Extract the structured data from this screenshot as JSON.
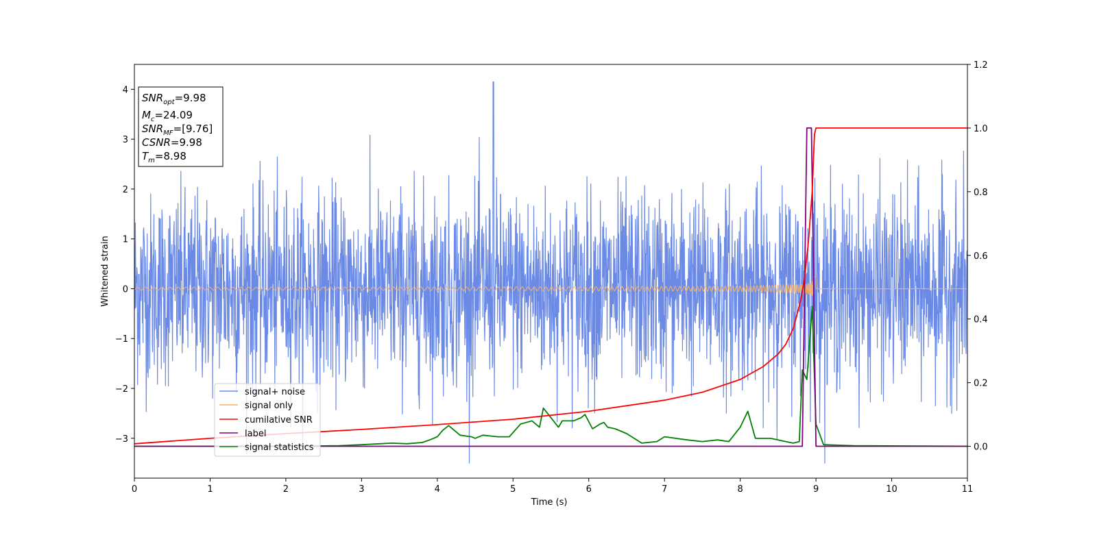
{
  "chart_data": {
    "type": "line",
    "xlabel": "Time (s)",
    "ylabel": "Whitened strain",
    "xlim": [
      0,
      11
    ],
    "ylim_left": [
      -3.8,
      4.5
    ],
    "ylim_right": [
      -0.1,
      1.2
    ],
    "x_ticks": [
      "0",
      "1",
      "2",
      "3",
      "4",
      "5",
      "6",
      "7",
      "8",
      "9",
      "10",
      "11"
    ],
    "y_ticks_left": [
      "−3",
      "−2",
      "−1",
      "0",
      "1",
      "2",
      "3",
      "4"
    ],
    "y_ticks_left_values": [
      -3,
      -2,
      -1,
      0,
      1,
      2,
      3,
      4
    ],
    "y_ticks_right": [
      "0.0",
      "0.2",
      "0.4",
      "0.6",
      "0.8",
      "1.0",
      "1.2"
    ],
    "y_ticks_right_values": [
      0,
      0.2,
      0.4,
      0.6,
      0.8,
      1.0,
      1.2
    ],
    "info_box": {
      "snr_opt": {
        "base": "SNR",
        "sub": "opt",
        "rest": "=9.98"
      },
      "mc": {
        "base": "M",
        "sub": "c",
        "rest": "=24.09"
      },
      "snr_mf": {
        "base": "SNR",
        "sub": "MF",
        "rest": "=[9.76]"
      },
      "csnr": {
        "base": "CSNR",
        "sub": "",
        "rest": "=9.98"
      },
      "tm": {
        "base": "T",
        "sub": "m",
        "rest": "=8.98"
      }
    },
    "legend_position": "lower-left",
    "series": [
      {
        "name": "signal+ noise",
        "axis": "left",
        "color": "#6b8ae6",
        "description": "whitened noise with std ~1, amplitude up to ~4.2"
      },
      {
        "name": "signal only",
        "axis": "left",
        "color": "#f4b266",
        "description": "chirp waveform, amplitude growing to ~0.5 near t=8.95, zero after 9.0"
      },
      {
        "name": "cumilative SNR",
        "axis": "right",
        "color": "#ff0000",
        "x": [
          0,
          1,
          2,
          3,
          4,
          5,
          6,
          7,
          7.5,
          8,
          8.3,
          8.5,
          8.6,
          8.7,
          8.8,
          8.85,
          8.9,
          8.95,
          8.98,
          9.0,
          11
        ],
        "y": [
          0.008,
          0.025,
          0.04,
          0.053,
          0.068,
          0.085,
          0.11,
          0.145,
          0.17,
          0.21,
          0.25,
          0.29,
          0.32,
          0.37,
          0.46,
          0.53,
          0.64,
          0.8,
          0.98,
          1.0,
          1.0
        ]
      },
      {
        "name": "label",
        "axis": "right",
        "color": "#800080",
        "x": [
          0,
          8.82,
          8.88,
          8.94,
          9.0,
          11
        ],
        "y": [
          0,
          0,
          1,
          1,
          0,
          0
        ]
      },
      {
        "name": "signal statistics",
        "axis": "right",
        "color": "#008000",
        "x": [
          0,
          0.5,
          1,
          2,
          2.7,
          3.0,
          3.4,
          3.6,
          3.8,
          3.9,
          4.0,
          4.07,
          4.15,
          4.3,
          4.45,
          4.5,
          4.6,
          4.8,
          4.95,
          5.1,
          5.25,
          5.35,
          5.4,
          5.5,
          5.6,
          5.65,
          5.8,
          5.9,
          5.95,
          6.05,
          6.15,
          6.2,
          6.25,
          6.35,
          6.5,
          6.7,
          6.9,
          7.0,
          7.3,
          7.5,
          7.7,
          7.85,
          8.0,
          8.1,
          8.2,
          8.4,
          8.6,
          8.7,
          8.78,
          8.82,
          8.88,
          8.95,
          9.0,
          9.1,
          9.5,
          11
        ],
        "y": [
          0,
          0.0,
          0.0,
          0.0,
          0.002,
          0.005,
          0.01,
          0.008,
          0.012,
          0.02,
          0.03,
          0.05,
          0.065,
          0.035,
          0.03,
          0.025,
          0.035,
          0.03,
          0.03,
          0.07,
          0.08,
          0.06,
          0.12,
          0.09,
          0.06,
          0.08,
          0.08,
          0.09,
          0.1,
          0.055,
          0.07,
          0.075,
          0.06,
          0.055,
          0.04,
          0.01,
          0.015,
          0.03,
          0.02,
          0.015,
          0.02,
          0.015,
          0.06,
          0.11,
          0.025,
          0.025,
          0.015,
          0.01,
          0.015,
          0.24,
          0.21,
          0.44,
          0.07,
          0.005,
          0.002,
          0.0
        ]
      }
    ]
  }
}
